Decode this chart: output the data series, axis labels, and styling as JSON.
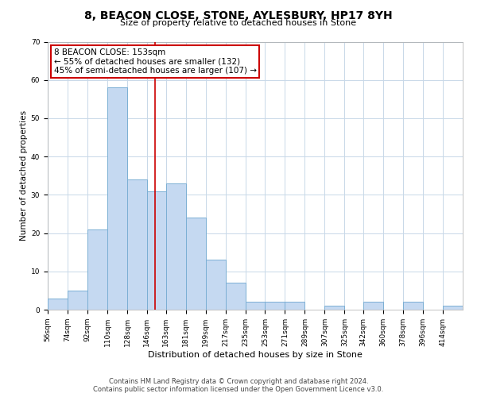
{
  "title": "8, BEACON CLOSE, STONE, AYLESBURY, HP17 8YH",
  "subtitle": "Size of property relative to detached houses in Stone",
  "xlabel": "Distribution of detached houses by size in Stone",
  "ylabel": "Number of detached properties",
  "footer_line1": "Contains HM Land Registry data © Crown copyright and database right 2024.",
  "footer_line2": "Contains public sector information licensed under the Open Government Licence v3.0.",
  "bin_labels": [
    "56sqm",
    "74sqm",
    "92sqm",
    "110sqm",
    "128sqm",
    "146sqm",
    "163sqm",
    "181sqm",
    "199sqm",
    "217sqm",
    "235sqm",
    "253sqm",
    "271sqm",
    "289sqm",
    "307sqm",
    "325sqm",
    "342sqm",
    "360sqm",
    "378sqm",
    "396sqm",
    "414sqm"
  ],
  "bar_heights": [
    3,
    5,
    21,
    58,
    34,
    31,
    33,
    24,
    13,
    7,
    2,
    2,
    2,
    0,
    1,
    0,
    2,
    0,
    2,
    0,
    1
  ],
  "bar_color": "#c5d9f1",
  "bar_edge_color": "#7bafd4",
  "property_line_x": 153,
  "property_line_label": "8 BEACON CLOSE: 153sqm",
  "annotation_line1": "← 55% of detached houses are smaller (132)",
  "annotation_line2": "45% of semi-detached houses are larger (107) →",
  "annotation_box_color": "#ffffff",
  "annotation_box_edge_color": "#cc0000",
  "property_line_color": "#cc0000",
  "ylim": [
    0,
    70
  ],
  "yticks": [
    0,
    10,
    20,
    30,
    40,
    50,
    60,
    70
  ],
  "background_color": "#ffffff",
  "grid_color": "#c8d8e8",
  "title_fontsize": 10,
  "subtitle_fontsize": 8,
  "xlabel_fontsize": 8,
  "ylabel_fontsize": 7.5,
  "tick_fontsize": 6.5,
  "annotation_fontsize": 7.5,
  "footer_fontsize": 6
}
